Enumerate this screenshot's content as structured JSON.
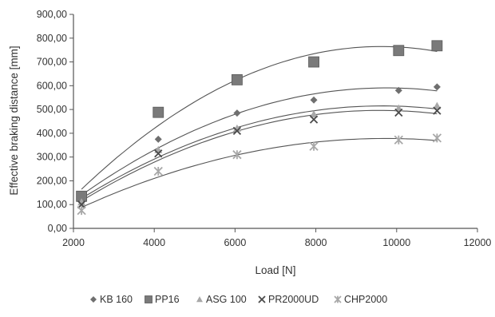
{
  "chart_data": {
    "type": "scatter",
    "title": "",
    "xlabel": "Load [N]",
    "ylabel": "Effective braking distance [mm]",
    "xlim": [
      2000,
      12000
    ],
    "ylim": [
      0,
      900
    ],
    "x_ticks": [
      2000,
      4000,
      6000,
      8000,
      10000,
      12000
    ],
    "x_tick_labels": [
      "2000",
      "4000",
      "6000",
      "8000",
      "10000",
      "12000"
    ],
    "y_ticks": [
      0,
      100,
      200,
      300,
      400,
      500,
      600,
      700,
      800,
      900
    ],
    "y_tick_labels": [
      "0,00",
      "100,00",
      "200,00",
      "300,00",
      "400,00",
      "500,00",
      "600,00",
      "700,00",
      "800,00",
      "900,00"
    ],
    "grid": false,
    "legend_position": "bottom",
    "trendline": "polynomial order 2",
    "colors": {
      "trendline": "#555555",
      "axis": "#555555",
      "marker_dark": "#6f6f6f",
      "marker_mid": "#7a7a7a",
      "marker_light": "#a8a8a8"
    },
    "series": [
      {
        "name": "KB 160",
        "marker": "diamond",
        "x": [
          2200,
          4100,
          6050,
          7950,
          10050,
          11000
        ],
        "y": [
          120,
          375,
          485,
          540,
          580,
          595
        ]
      },
      {
        "name": "PP16",
        "marker": "square",
        "x": [
          2200,
          4100,
          6050,
          7950,
          10050,
          11000
        ],
        "y": [
          135,
          488,
          625,
          700,
          748,
          768
        ]
      },
      {
        "name": "ASG 100",
        "marker": "triangle",
        "x": [
          2200,
          4100,
          6050,
          7950,
          10050,
          11000
        ],
        "y": [
          110,
          330,
          420,
          480,
          505,
          515
        ]
      },
      {
        "name": "PR2000UD",
        "marker": "x",
        "x": [
          2200,
          4100,
          6050,
          7950,
          10050,
          11000
        ],
        "y": [
          100,
          315,
          410,
          458,
          487,
          495
        ]
      },
      {
        "name": "CHP2000",
        "marker": "star",
        "x": [
          2200,
          4100,
          6050,
          7950,
          10050,
          11000
        ],
        "y": [
          75,
          240,
          310,
          345,
          372,
          380
        ]
      }
    ]
  }
}
